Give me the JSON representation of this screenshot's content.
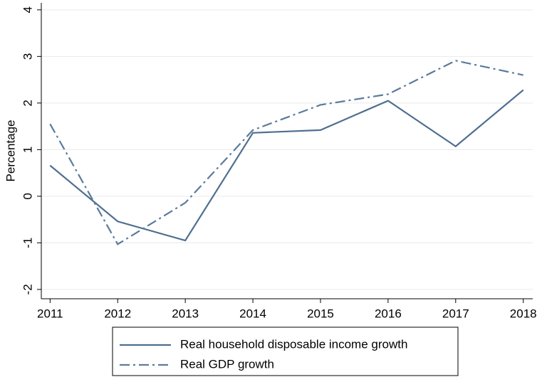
{
  "chart_data": {
    "type": "line",
    "y_label": "Percentage",
    "x": [
      2011,
      2012,
      2013,
      2014,
      2015,
      2016,
      2017,
      2018
    ],
    "series": [
      {
        "name": "Real household disposable income growth",
        "color": "#4f6f8f",
        "dash": "solid",
        "values": [
          0.66,
          -0.54,
          -0.95,
          1.36,
          1.42,
          2.05,
          1.07,
          2.28
        ]
      },
      {
        "name": "Real GDP growth",
        "color": "#5b7b9b",
        "dash": "dashdot",
        "values": [
          1.55,
          -1.03,
          -0.14,
          1.42,
          1.96,
          2.19,
          2.91,
          2.6
        ]
      }
    ],
    "xlim": [
      2010.87,
      2018.14
    ],
    "xticks": [
      2011,
      2012,
      2013,
      2014,
      2015,
      2016,
      2017,
      2018
    ],
    "ylim": [
      -2.2,
      4.15
    ],
    "yticks": [
      -2,
      -1,
      0,
      1,
      2,
      3,
      4
    ],
    "grid": true
  }
}
